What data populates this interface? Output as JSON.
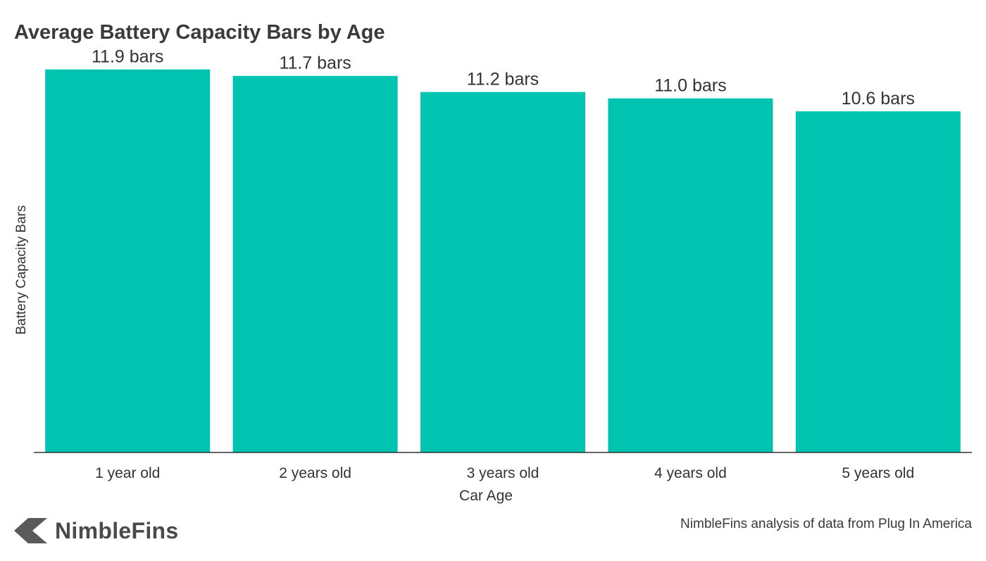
{
  "brand": {
    "name": "NimbleFins",
    "logo_icon": "nimblefins-chevron-logo",
    "logo_color": "#5a5a5a"
  },
  "source_note": "NimbleFins analysis of data from Plug In America",
  "chart_data": {
    "type": "bar",
    "title": "Average Battery Capacity Bars by Age",
    "xlabel": "Car Age",
    "ylabel": "Battery Capacity Bars",
    "categories": [
      "1 year old",
      "2 years old",
      "3 years old",
      "4 years old",
      "5 years old"
    ],
    "values": [
      11.9,
      11.7,
      11.2,
      11.0,
      10.6
    ],
    "data_labels": [
      "11.9 bars",
      "11.7 bars",
      "11.2 bars",
      "11.0 bars",
      "10.6 bars"
    ],
    "ylim": [
      0,
      12
    ],
    "grid": false,
    "legend": "none",
    "bar_color": "#00c3b0",
    "axis_color": "#333333"
  }
}
